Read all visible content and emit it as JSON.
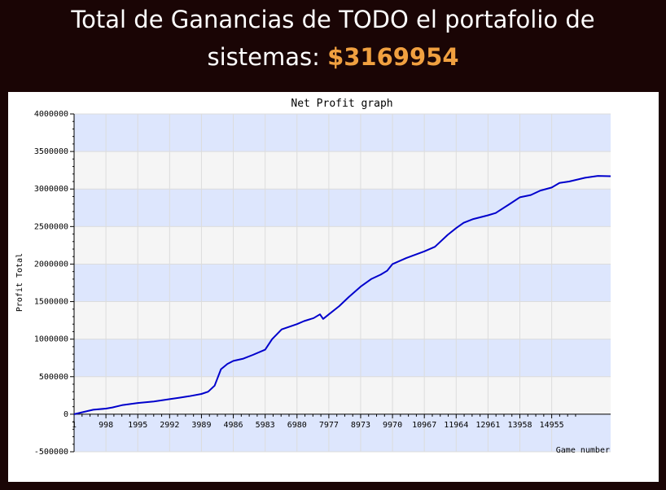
{
  "header": {
    "title_line1": "Total de Ganancias de TODO el portafolio de",
    "title_line2_prefix": "sistemas: ",
    "title_amount": "$3169954"
  },
  "colors": {
    "page_background": "#1a0505",
    "amount": "#f0a040",
    "band_light": "#f5f5f5",
    "band_blue": "#dde6fd",
    "line": "#0000cc"
  },
  "chart_data": {
    "type": "line",
    "title": "Net Profit graph",
    "xlabel": "Game number",
    "ylabel": "Profit Total",
    "xlim": [
      1,
      16800
    ],
    "ylim": [
      -500000,
      4000000
    ],
    "grid": true,
    "x_tick_labels": [
      "1",
      "998",
      "1995",
      "2992",
      "3989",
      "4986",
      "5983",
      "6980",
      "7977",
      "8973",
      "9970",
      "10967",
      "11964",
      "12961",
      "13958",
      "14955"
    ],
    "y_tick_labels": [
      "4000000",
      "3500000",
      "3000000",
      "2500000",
      "2000000",
      "1500000",
      "1000000",
      "500000",
      "0",
      "-500000"
    ],
    "series": [
      {
        "x": [
          1,
          300,
          600,
          998,
          1200,
          1500,
          1995,
          2500,
          2992,
          3300,
          3600,
          3989,
          4200,
          4400,
          4600,
          4800,
          4986,
          5300,
          5600,
          5983,
          6200,
          6500,
          6980,
          7200,
          7500,
          7700,
          7800,
          7977,
          8300,
          8600,
          8973,
          9300,
          9600,
          9800,
          9970,
          10400,
          10967,
          11300,
          11700,
          11964,
          12200,
          12500,
          12961,
          13200,
          13600,
          13958,
          14300,
          14600,
          14955,
          15200,
          15500,
          16000,
          16400,
          16800
        ],
        "values": [
          0,
          30000,
          60000,
          75000,
          90000,
          120000,
          150000,
          170000,
          200000,
          220000,
          240000,
          270000,
          300000,
          380000,
          600000,
          670000,
          710000,
          740000,
          790000,
          860000,
          1000000,
          1130000,
          1200000,
          1240000,
          1280000,
          1330000,
          1270000,
          1330000,
          1440000,
          1560000,
          1700000,
          1800000,
          1860000,
          1910000,
          2000000,
          2080000,
          2170000,
          2230000,
          2390000,
          2480000,
          2550000,
          2600000,
          2650000,
          2680000,
          2790000,
          2890000,
          2920000,
          2980000,
          3020000,
          3080000,
          3100000,
          3150000,
          3175000,
          3170000
        ]
      }
    ]
  }
}
